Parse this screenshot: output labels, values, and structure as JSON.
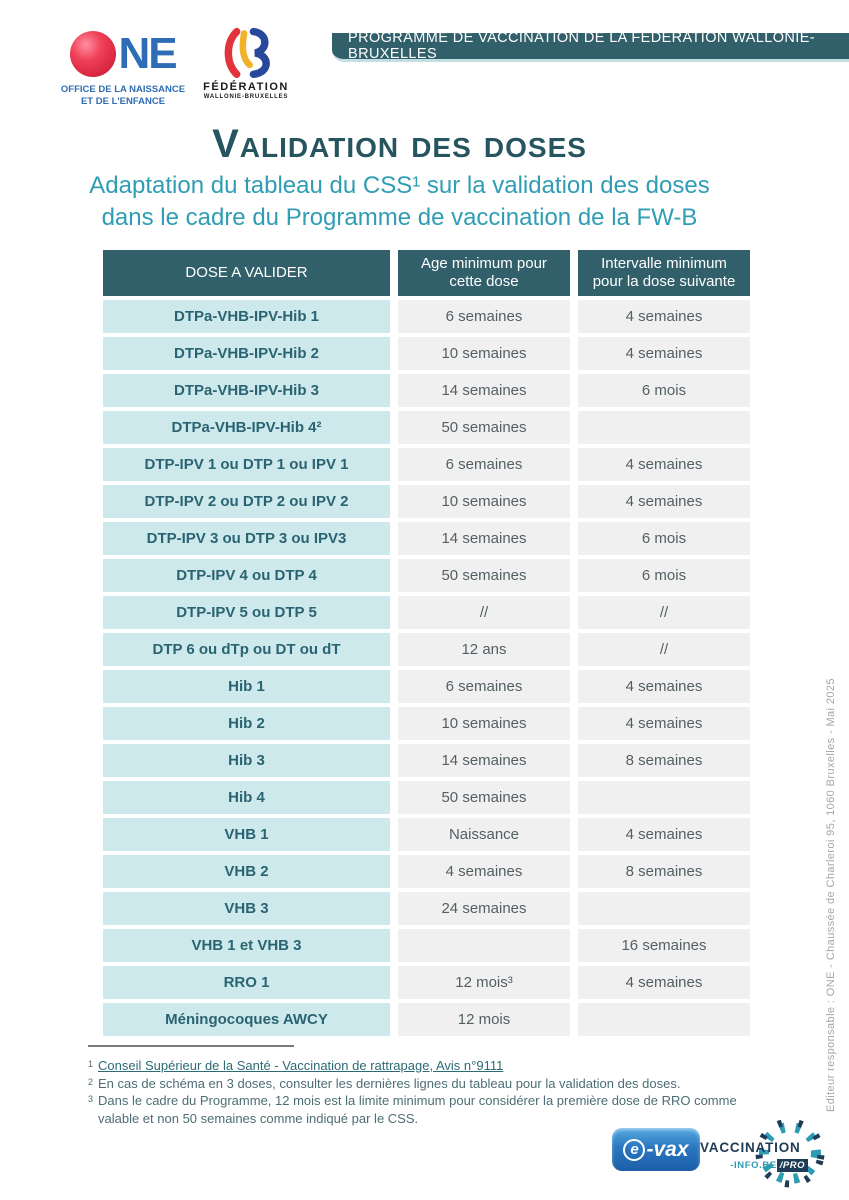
{
  "header": {
    "one_logo": {
      "wordmark": "NE",
      "subtitle_line1": "OFFICE DE LA NAISSANCE",
      "subtitle_line2": "ET DE L'ENFANCE"
    },
    "fwb_logo": {
      "line1": "FÉDÉRATION",
      "line2": "WALLONIE-BRUXELLES"
    },
    "banner": "PROGRAMME DE VACCINATION DE LA FÉDÉRATION WALLONIE-BRUXELLES"
  },
  "title": "Validation des doses",
  "subtitle_line1": "Adaptation du tableau du CSS¹ sur la validation des doses",
  "subtitle_line2": "dans le cadre du Programme de vaccination de la FW-B",
  "table": {
    "headers": [
      "DOSE A VALIDER",
      "Age minimum pour cette dose",
      "Intervalle minimum pour la dose suivante"
    ],
    "rows": [
      {
        "dose": "DTPa-VHB-IPV-Hib 1",
        "age": "6 semaines",
        "interval": "4 semaines"
      },
      {
        "dose": "DTPa-VHB-IPV-Hib 2",
        "age": "10 semaines",
        "interval": "4 semaines"
      },
      {
        "dose": "DTPa-VHB-IPV-Hib 3",
        "age": "14 semaines",
        "interval": "6 mois"
      },
      {
        "dose": "DTPa-VHB-IPV-Hib 4²",
        "age": "50 semaines",
        "interval": ""
      },
      {
        "dose": "DTP-IPV 1 ou DTP 1 ou IPV 1",
        "age": "6 semaines",
        "interval": "4 semaines"
      },
      {
        "dose": "DTP-IPV 2 ou DTP 2 ou IPV 2",
        "age": "10 semaines",
        "interval": "4 semaines"
      },
      {
        "dose": "DTP-IPV 3 ou DTP 3 ou IPV3",
        "age": "14 semaines",
        "interval": "6 mois"
      },
      {
        "dose": "DTP-IPV 4 ou DTP 4",
        "age": "50 semaines",
        "interval": "6 mois"
      },
      {
        "dose": "DTP-IPV 5 ou DTP 5",
        "age": "//",
        "interval": "//"
      },
      {
        "dose": "DTP 6 ou dTp ou DT ou dT",
        "age": "12 ans",
        "interval": "//"
      },
      {
        "dose": "Hib 1",
        "age": "6 semaines",
        "interval": "4 semaines"
      },
      {
        "dose": "Hib 2",
        "age": "10 semaines",
        "interval": "4 semaines"
      },
      {
        "dose": "Hib 3",
        "age": "14 semaines",
        "interval": "8 semaines"
      },
      {
        "dose": "Hib 4",
        "age": "50 semaines",
        "interval": ""
      },
      {
        "dose": "VHB 1",
        "age": "Naissance",
        "interval": "4 semaines"
      },
      {
        "dose": "VHB 2",
        "age": "4 semaines",
        "interval": "8 semaines"
      },
      {
        "dose": "VHB 3",
        "age": "24 semaines",
        "interval": ""
      },
      {
        "dose": "VHB 1 et VHB 3",
        "age": "",
        "interval": "16 semaines"
      },
      {
        "dose": "RRO 1",
        "age": "12 mois³",
        "interval": "4 semaines"
      },
      {
        "dose": "Méningocoques AWCY",
        "age": "12 mois",
        "interval": ""
      }
    ]
  },
  "footnotes": [
    {
      "marker": "1",
      "link": true,
      "text": "Conseil Supérieur de la Santé - Vaccination de rattrapage, Avis n°9111"
    },
    {
      "marker": "2",
      "link": false,
      "text": "En cas de schéma en 3 doses, consulter les dernières lignes du tableau pour la validation des doses."
    },
    {
      "marker": "3",
      "link": false,
      "text": "Dans le cadre du Programme, 12 mois est la limite minimum pour considérer la première dose de RRO comme valable et non 50 semaines comme indiqué par le CSS."
    }
  ],
  "footer": {
    "evax_label": "-vax",
    "evax_e": "e",
    "vaccination_logo": {
      "line1": "VACCINATION",
      "info": "-INFO.BE",
      "pro": "/PRO"
    }
  },
  "sidebar_note": "Editeur responsable : ONE - Chaussée de Charleroi 95, 1060 Bruxelles - Mai 2025",
  "colors": {
    "dark_teal": "#315f6a",
    "light_teal_cell": "#cde9ec",
    "gray_cell": "#f0f0f1",
    "subtitle_teal": "#2f9db4",
    "title_teal": "#26555f",
    "one_blue": "#2e6cb5",
    "one_red": "#e4344e",
    "vacc_navy": "#1e3c55",
    "vacc_teal": "#2d9cb3"
  }
}
